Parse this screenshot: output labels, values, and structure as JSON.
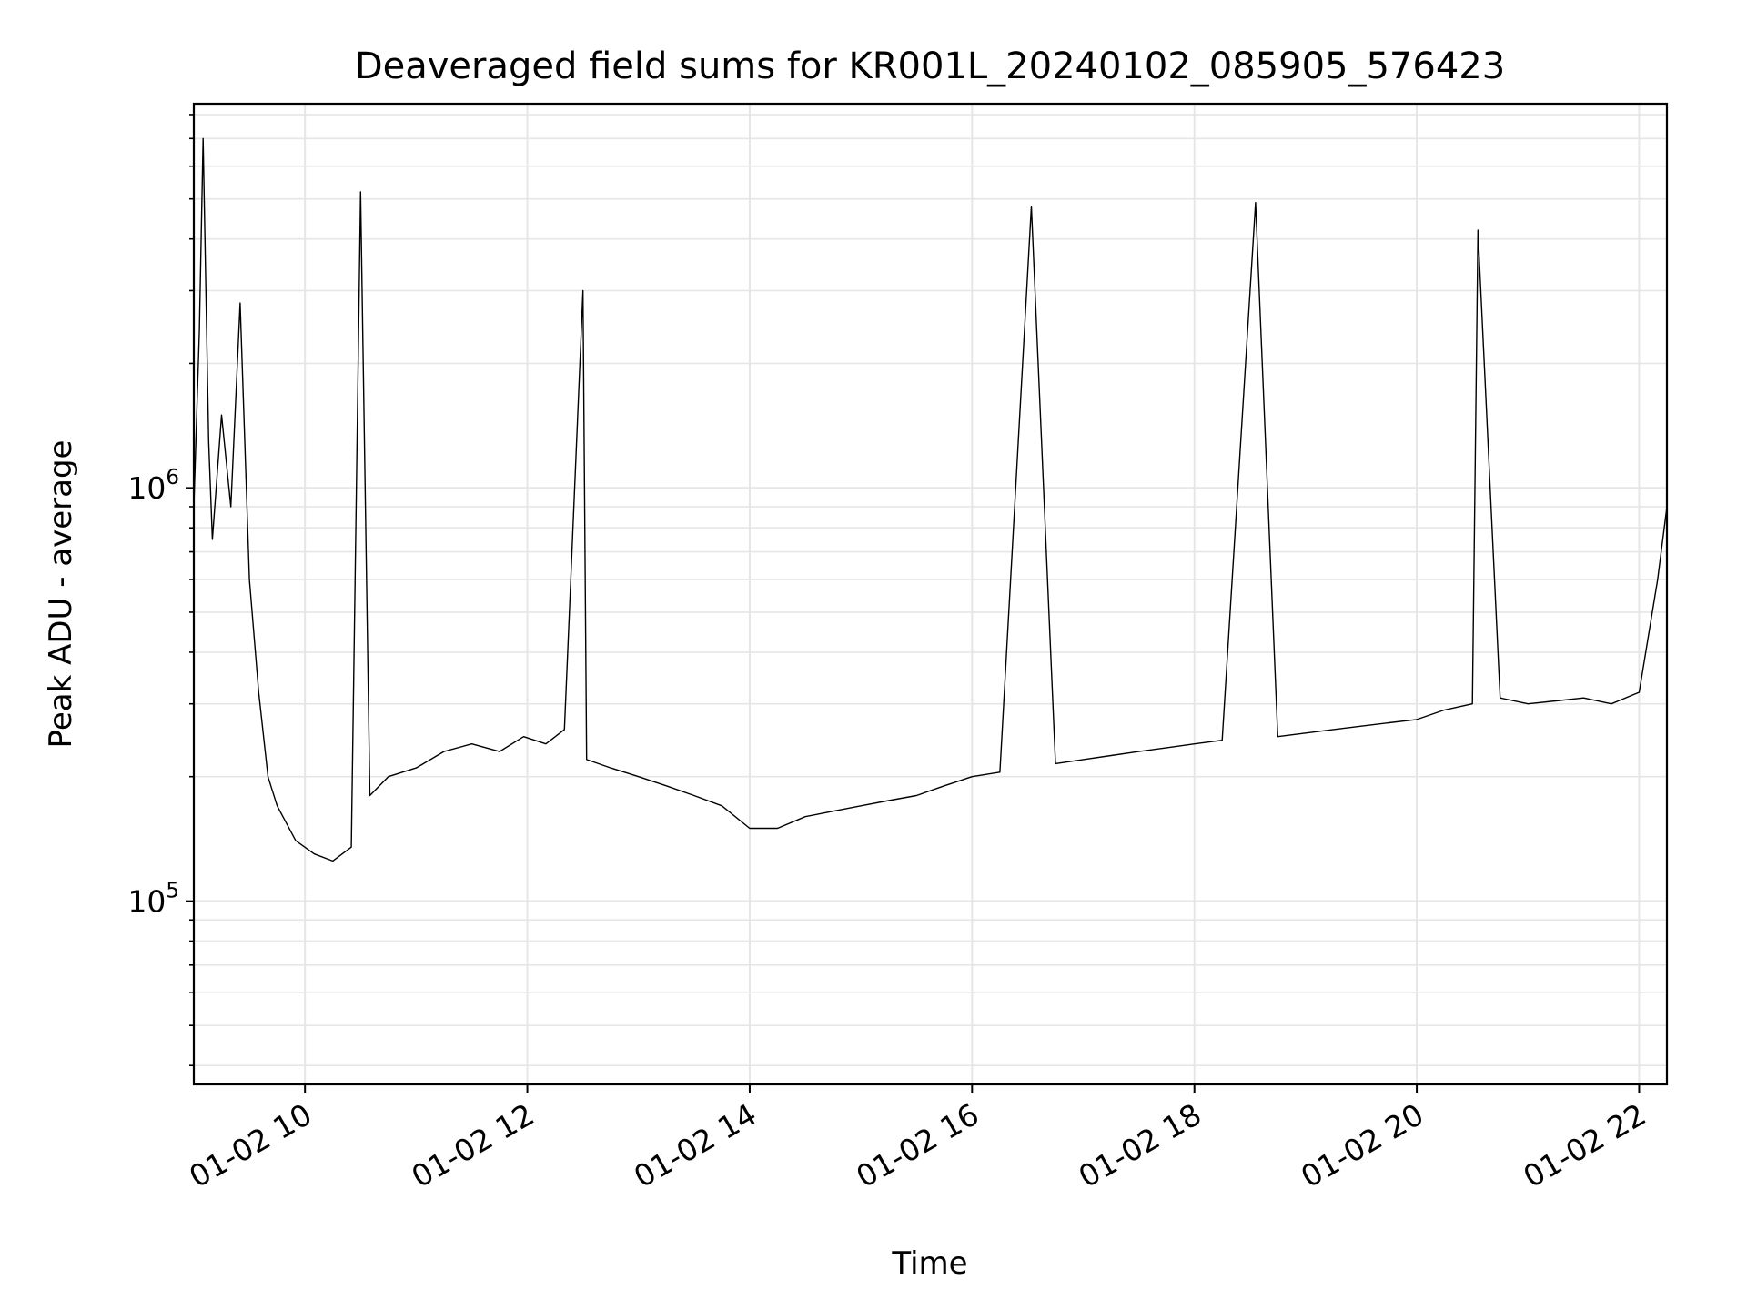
{
  "chart_data": {
    "type": "line",
    "title": "Deaveraged field sums for KR001L_20240102_085905_576423",
    "xlabel": "Time",
    "ylabel": "Peak ADU - average",
    "yscale": "log",
    "grid": true,
    "line_color": "#000000",
    "grid_color": "#e6e6e6",
    "xlim": [
      "2024-01-02 09:00",
      "2024-01-02 22:15"
    ],
    "ylim": [
      36000,
      8500000
    ],
    "x_ticks": [
      {
        "value": "2024-01-02 10:00",
        "label": "01-02 10"
      },
      {
        "value": "2024-01-02 12:00",
        "label": "01-02 12"
      },
      {
        "value": "2024-01-02 14:00",
        "label": "01-02 14"
      },
      {
        "value": "2024-01-02 16:00",
        "label": "01-02 16"
      },
      {
        "value": "2024-01-02 18:00",
        "label": "01-02 18"
      },
      {
        "value": "2024-01-02 20:00",
        "label": "01-02 20"
      },
      {
        "value": "2024-01-02 22:00",
        "label": "01-02 22"
      }
    ],
    "y_ticks": [
      {
        "value": 100000,
        "base": "10",
        "exp": "5"
      },
      {
        "value": 1000000,
        "base": "10",
        "exp": "6"
      }
    ],
    "series": [
      {
        "values_description_hidden": "",
        "x": [
          "2024-01-02 09:00",
          "2024-01-02 09:03",
          "2024-01-02 09:05",
          "2024-01-02 09:08",
          "2024-01-02 09:10",
          "2024-01-02 09:15",
          "2024-01-02 09:20",
          "2024-01-02 09:25",
          "2024-01-02 09:30",
          "2024-01-02 09:35",
          "2024-01-02 09:40",
          "2024-01-02 09:45",
          "2024-01-02 09:55",
          "2024-01-02 10:05",
          "2024-01-02 10:15",
          "2024-01-02 10:25",
          "2024-01-02 10:30",
          "2024-01-02 10:35",
          "2024-01-02 10:45",
          "2024-01-02 11:00",
          "2024-01-02 11:15",
          "2024-01-02 11:30",
          "2024-01-02 11:45",
          "2024-01-02 11:58",
          "2024-01-02 12:10",
          "2024-01-02 12:20",
          "2024-01-02 12:30",
          "2024-01-02 12:32",
          "2024-01-02 12:45",
          "2024-01-02 13:00",
          "2024-01-02 13:15",
          "2024-01-02 13:30",
          "2024-01-02 13:45",
          "2024-01-02 14:00",
          "2024-01-02 14:15",
          "2024-01-02 14:30",
          "2024-01-02 14:45",
          "2024-01-02 15:00",
          "2024-01-02 15:15",
          "2024-01-02 15:30",
          "2024-01-02 15:45",
          "2024-01-02 16:00",
          "2024-01-02 16:15",
          "2024-01-02 16:32",
          "2024-01-02 16:45",
          "2024-01-02 17:00",
          "2024-01-02 17:15",
          "2024-01-02 17:30",
          "2024-01-02 17:45",
          "2024-01-02 18:00",
          "2024-01-02 18:15",
          "2024-01-02 18:33",
          "2024-01-02 18:45",
          "2024-01-02 19:00",
          "2024-01-02 19:15",
          "2024-01-02 19:30",
          "2024-01-02 19:45",
          "2024-01-02 20:00",
          "2024-01-02 20:15",
          "2024-01-02 20:30",
          "2024-01-02 20:33",
          "2024-01-02 20:45",
          "2024-01-02 21:00",
          "2024-01-02 21:15",
          "2024-01-02 21:30",
          "2024-01-02 21:45",
          "2024-01-02 22:00",
          "2024-01-02 22:10",
          "2024-01-02 22:15"
        ],
        "y": [
          900000,
          2400000,
          7000000,
          1300000,
          750000,
          1500000,
          900000,
          2800000,
          600000,
          320000,
          200000,
          170000,
          140000,
          130000,
          125000,
          135000,
          5200000,
          180000,
          200000,
          210000,
          230000,
          240000,
          230000,
          250000,
          240000,
          260000,
          3000000,
          220000,
          210000,
          200000,
          190000,
          180000,
          170000,
          150000,
          150000,
          160000,
          165000,
          170000,
          175000,
          180000,
          190000,
          200000,
          205000,
          4800000,
          215000,
          220000,
          225000,
          230000,
          235000,
          240000,
          245000,
          4900000,
          250000,
          255000,
          260000,
          265000,
          270000,
          275000,
          290000,
          300000,
          4200000,
          310000,
          300000,
          305000,
          310000,
          300000,
          320000,
          600000,
          900000
        ]
      }
    ]
  }
}
